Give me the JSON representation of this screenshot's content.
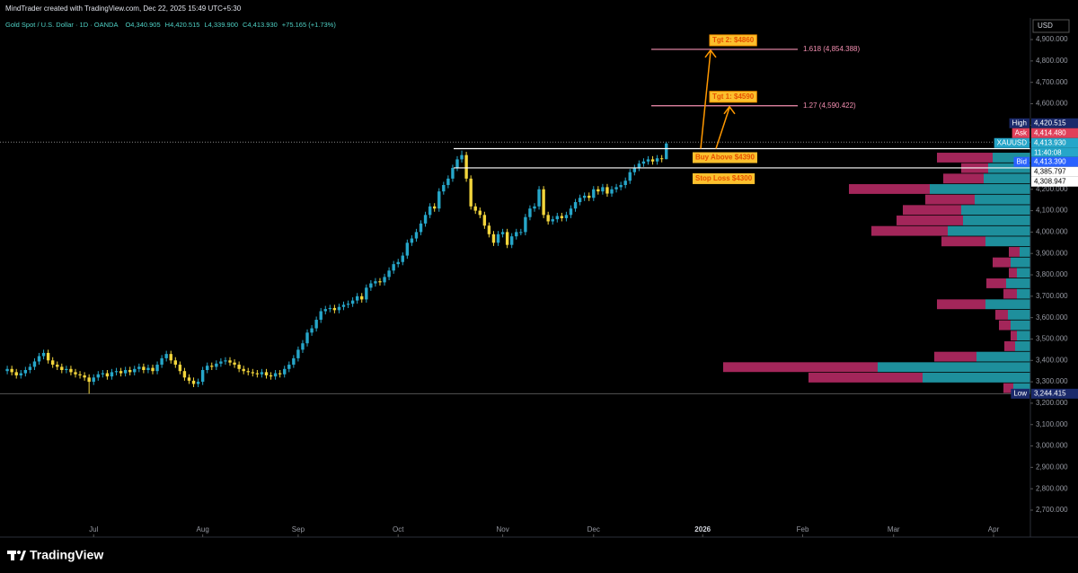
{
  "header": {
    "credit": "MindTrader created with TradingView.com, Dec 22, 2025 15:49 UTC+5:30",
    "symbol": "Gold Spot / U.S. Dollar · 1D · OANDA",
    "ohlc": [
      "O4,340.905",
      "H4,420.515",
      "L4,339.900",
      "C4,413.930"
    ],
    "change": "+75.165 (+1.73%)",
    "currency": "USD"
  },
  "footer": {
    "brand": "TradingView"
  },
  "chart_data": {
    "type": "candlestick",
    "up_color": "#26a6c9",
    "down_color": "#f2d53c",
    "xlim": [
      -1.6,
      225.1
    ],
    "xticks": [
      {
        "value": 19,
        "label": "Jul"
      },
      {
        "value": 43,
        "label": "Aug"
      },
      {
        "value": 64,
        "label": "Sep"
      },
      {
        "value": 86,
        "label": "Oct"
      },
      {
        "value": 109,
        "label": "Nov"
      },
      {
        "value": 129,
        "label": "Dec"
      },
      {
        "value": 153,
        "label": "2026"
      },
      {
        "value": 175,
        "label": "Feb"
      },
      {
        "value": 195,
        "label": "Mar"
      },
      {
        "value": 217,
        "label": "Apr"
      }
    ],
    "ylim": [
      2574,
      5001
    ],
    "yticks": [
      {
        "value": 4900,
        "label": "4,900.000"
      },
      {
        "value": 4800,
        "label": "4,800.000"
      },
      {
        "value": 4700,
        "label": "4,700.000"
      },
      {
        "value": 4600,
        "label": "4,600.000"
      },
      {
        "value": 4500,
        "label": "4,500.000"
      },
      {
        "value": 4200,
        "label": "4,200.000"
      },
      {
        "value": 4100,
        "label": "4,100.000"
      },
      {
        "value": 4000,
        "label": "4,000.000"
      },
      {
        "value": 3900,
        "label": "3,900.000"
      },
      {
        "value": 3800,
        "label": "3,800.000"
      },
      {
        "value": 3700,
        "label": "3,700.000"
      },
      {
        "value": 3600,
        "label": "3,600.000"
      },
      {
        "value": 3500,
        "label": "3,500.000"
      },
      {
        "value": 3400,
        "label": "3,400.000"
      },
      {
        "value": 3300,
        "label": "3,300.000"
      },
      {
        "value": 3200,
        "label": "3,200.000"
      },
      {
        "value": 3100,
        "label": "3,100.000"
      },
      {
        "value": 3000,
        "label": "3,000.000"
      },
      {
        "value": 2900,
        "label": "2,900.000"
      },
      {
        "value": 2800,
        "label": "2,800.000"
      },
      {
        "value": 2700,
        "label": "2,700.000"
      }
    ],
    "open": [
      3350,
      3360,
      3345,
      3330,
      3340,
      3355,
      3370,
      3395,
      3420,
      3435,
      3400,
      3380,
      3370,
      3355,
      3360,
      3345,
      3335,
      3330,
      3320,
      3300,
      3320,
      3335,
      3340,
      3325,
      3345,
      3350,
      3340,
      3355,
      3345,
      3360,
      3370,
      3355,
      3365,
      3350,
      3380,
      3410,
      3430,
      3400,
      3380,
      3350,
      3320,
      3305,
      3290,
      3300,
      3355,
      3375,
      3370,
      3385,
      3395,
      3400,
      3390,
      3380,
      3360,
      3350,
      3345,
      3340,
      3335,
      3345,
      3330,
      3325,
      3340,
      3335,
      3360,
      3380,
      3410,
      3450,
      3480,
      3530,
      3550,
      3590,
      3630,
      3640,
      3645,
      3635,
      3650,
      3660,
      3665,
      3680,
      3700,
      3685,
      3740,
      3760,
      3770,
      3765,
      3790,
      3820,
      3850,
      3860,
      3890,
      3950,
      3970,
      4000,
      4040,
      4080,
      4120,
      4110,
      4190,
      4220,
      4250,
      4300,
      4340,
      4360,
      4250,
      4120,
      4100,
      4080,
      4030,
      3990,
      3950,
      3990,
      4000,
      3940,
      3980,
      4000,
      4000,
      4070,
      4110,
      4120,
      4200,
      4080,
      4050,
      4060,
      4075,
      4065,
      4080,
      4110,
      4140,
      4160,
      4170,
      4160,
      4200,
      4190,
      4210,
      4180,
      4200,
      4210,
      4220,
      4240,
      4280,
      4300,
      4320,
      4330,
      4340,
      4330,
      4345,
      4340.905
    ],
    "high": [
      3375,
      3375,
      3360,
      3355,
      3370,
      3385,
      3410,
      3435,
      3450,
      3450,
      3415,
      3395,
      3385,
      3375,
      3375,
      3360,
      3350,
      3345,
      3335,
      3335,
      3350,
      3355,
      3355,
      3360,
      3365,
      3365,
      3370,
      3370,
      3375,
      3385,
      3385,
      3380,
      3380,
      3395,
      3425,
      3445,
      3445,
      3415,
      3395,
      3365,
      3335,
      3320,
      3315,
      3370,
      3390,
      3390,
      3400,
      3410,
      3415,
      3415,
      3405,
      3395,
      3375,
      3365,
      3360,
      3355,
      3360,
      3360,
      3345,
      3355,
      3355,
      3375,
      3395,
      3425,
      3465,
      3495,
      3545,
      3565,
      3605,
      3645,
      3655,
      3660,
      3660,
      3665,
      3675,
      3680,
      3695,
      3715,
      3715,
      3755,
      3775,
      3785,
      3785,
      3805,
      3835,
      3865,
      3875,
      3905,
      3965,
      3985,
      4015,
      4055,
      4095,
      4135,
      4135,
      4205,
      4235,
      4265,
      4315,
      4355,
      4381,
      4375,
      4265,
      4135,
      4115,
      4095,
      4045,
      4005,
      4005,
      4015,
      4015,
      3995,
      4015,
      4015,
      4085,
      4125,
      4135,
      4215,
      4215,
      4095,
      4075,
      4090,
      4090,
      4095,
      4125,
      4155,
      4175,
      4185,
      4185,
      4215,
      4215,
      4225,
      4225,
      4215,
      4225,
      4235,
      4255,
      4295,
      4315,
      4335,
      4345,
      4355,
      4355,
      4360,
      4360,
      4420.515
    ],
    "low": [
      3335,
      3330,
      3315,
      3315,
      3325,
      3340,
      3355,
      3380,
      3405,
      3385,
      3365,
      3355,
      3340,
      3340,
      3330,
      3320,
      3315,
      3305,
      3244.415,
      3285,
      3305,
      3320,
      3310,
      3310,
      3330,
      3325,
      3325,
      3330,
      3330,
      3345,
      3340,
      3340,
      3335,
      3335,
      3365,
      3395,
      3385,
      3365,
      3335,
      3305,
      3290,
      3275,
      3275,
      3285,
      3340,
      3355,
      3355,
      3370,
      3380,
      3375,
      3365,
      3345,
      3335,
      3330,
      3325,
      3320,
      3320,
      3315,
      3310,
      3310,
      3320,
      3320,
      3345,
      3365,
      3395,
      3435,
      3465,
      3515,
      3535,
      3575,
      3615,
      3625,
      3620,
      3620,
      3635,
      3645,
      3650,
      3665,
      3670,
      3670,
      3725,
      3745,
      3750,
      3750,
      3775,
      3805,
      3835,
      3845,
      3875,
      3935,
      3955,
      3985,
      4025,
      4065,
      4095,
      4095,
      4175,
      4205,
      4235,
      4285,
      4325,
      4235,
      4105,
      4085,
      4065,
      4015,
      3975,
      3935,
      3935,
      3975,
      3925,
      3925,
      3965,
      3985,
      3985,
      4055,
      4095,
      4105,
      4065,
      4035,
      4035,
      4045,
      4050,
      4050,
      4065,
      4095,
      4125,
      4145,
      4145,
      4145,
      4175,
      4175,
      4165,
      4165,
      4185,
      4195,
      4205,
      4225,
      4265,
      4285,
      4305,
      4315,
      4315,
      4315,
      4326,
      4339.9
    ],
    "close": [
      3360,
      3345,
      3330,
      3340,
      3355,
      3370,
      3395,
      3420,
      3435,
      3400,
      3380,
      3370,
      3355,
      3360,
      3345,
      3335,
      3330,
      3320,
      3300,
      3320,
      3335,
      3340,
      3325,
      3345,
      3350,
      3340,
      3355,
      3345,
      3360,
      3370,
      3355,
      3365,
      3350,
      3380,
      3410,
      3430,
      3400,
      3380,
      3350,
      3320,
      3305,
      3290,
      3300,
      3355,
      3375,
      3370,
      3385,
      3395,
      3400,
      3390,
      3380,
      3360,
      3350,
      3345,
      3340,
      3335,
      3345,
      3330,
      3325,
      3340,
      3335,
      3360,
      3380,
      3410,
      3450,
      3480,
      3530,
      3550,
      3590,
      3630,
      3640,
      3645,
      3635,
      3650,
      3660,
      3665,
      3680,
      3700,
      3685,
      3740,
      3760,
      3770,
      3765,
      3790,
      3820,
      3850,
      3860,
      3890,
      3950,
      3970,
      4000,
      4040,
      4080,
      4120,
      4110,
      4190,
      4220,
      4250,
      4300,
      4340,
      4360,
      4250,
      4120,
      4100,
      4080,
      4030,
      3990,
      3950,
      3990,
      4000,
      3940,
      3980,
      4000,
      4000,
      4070,
      4110,
      4120,
      4200,
      4080,
      4050,
      4060,
      4075,
      4065,
      4080,
      4110,
      4140,
      4160,
      4170,
      4160,
      4200,
      4190,
      4210,
      4180,
      4200,
      4210,
      4220,
      4240,
      4280,
      4300,
      4320,
      4330,
      4340,
      4330,
      4345,
      4340.905,
      4413.93
    ],
    "levels": [
      {
        "label": "Buy Above $4390",
        "value": 4390
      },
      {
        "label": "Stop Loss $4300",
        "value": 4300
      }
    ],
    "fib": [
      {
        "label": "1.27 (4,590.422)",
        "value": 4590.422,
        "target": "Tgt 1: $4590"
      },
      {
        "label": "1.618 (4,854.388)",
        "value": 4854.388,
        "target": "Tgt 2: $4860"
      }
    ],
    "price_labels": [
      {
        "tag": "High",
        "value": 4420.515,
        "label": "4,420.515",
        "color": "#1b2a6b"
      },
      {
        "tag": "Ask",
        "value": 4414.48,
        "label": "4,414.480",
        "color": "#e0405a"
      },
      {
        "tag": "XAUUSD",
        "value": 4413.93,
        "label": "4,413.930",
        "color": "#26a6c9",
        "countdown": "11:40:08"
      },
      {
        "tag": "Bid",
        "value": 4413.39,
        "label": "4,413.390",
        "color": "#2962ff"
      },
      {
        "value": 4385.797,
        "label": "4,385.797",
        "color": "#ffffff"
      },
      {
        "value": 4308.947,
        "label": "4,308.947",
        "color": "#ffffff"
      }
    ],
    "low_label": {
      "tag": "Low",
      "value": 3244.415,
      "label": "3,244.415",
      "color": "#1b2a6b"
    },
    "profile": {
      "range": [
        3244.415,
        4371
      ],
      "buy_color": "#1e8f9c",
      "sell_color": "#a3265a",
      "buy": [
        42,
        47,
        52,
        112,
        62,
        77,
        75,
        92,
        50,
        12,
        22,
        15,
        27,
        15,
        50,
        25,
        22,
        15,
        17,
        60,
        170,
        120,
        19
      ],
      "sell": [
        62,
        30,
        45,
        90,
        55,
        65,
        74,
        85,
        49,
        12,
        20,
        9,
        22,
        15,
        54,
        14,
        13,
        7,
        12,
        47,
        172,
        127,
        11
      ]
    }
  }
}
